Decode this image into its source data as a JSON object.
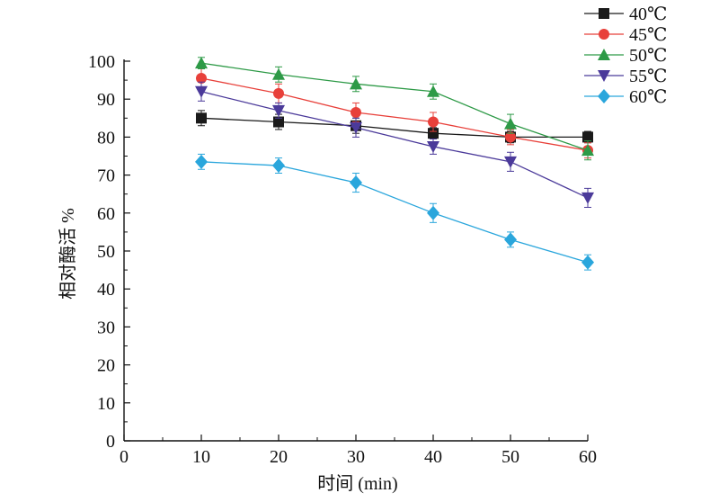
{
  "chart_data": {
    "type": "line",
    "title": "",
    "xlabel": "时间 (min)",
    "ylabel": "相对酶活 %",
    "xlim": [
      0,
      60
    ],
    "ylim": [
      0,
      100
    ],
    "x_ticks": [
      0,
      10,
      20,
      30,
      40,
      50,
      60
    ],
    "y_ticks": [
      0,
      10,
      20,
      30,
      40,
      50,
      60,
      70,
      80,
      90,
      100
    ],
    "x": [
      10,
      20,
      30,
      40,
      50,
      60
    ],
    "legend_position": "top-right",
    "grid": false,
    "series": [
      {
        "name": "40℃",
        "color": "#1a1a1a",
        "marker": "square",
        "values": [
          85,
          84,
          83,
          81,
          80,
          80
        ],
        "errors": [
          2,
          2,
          2,
          1.5,
          1.5,
          1.5
        ]
      },
      {
        "name": "45℃",
        "color": "#e8403a",
        "marker": "circle",
        "values": [
          95.5,
          91.5,
          86.5,
          84,
          80,
          76.5
        ],
        "errors": [
          2.5,
          2.5,
          2.5,
          2.5,
          2,
          2
        ]
      },
      {
        "name": "50℃",
        "color": "#2e9a47",
        "marker": "triangle-up",
        "values": [
          99.5,
          96.5,
          94,
          92,
          83.5,
          76.5
        ],
        "errors": [
          1.5,
          2,
          2,
          2,
          2.5,
          2.5
        ]
      },
      {
        "name": "55℃",
        "color": "#4b3a9a",
        "marker": "triangle-down",
        "values": [
          92,
          87,
          82.5,
          77.5,
          73.5,
          64
        ],
        "errors": [
          2.5,
          2,
          2.5,
          2,
          2.5,
          2.5
        ]
      },
      {
        "name": "60℃",
        "color": "#2aa6dc",
        "marker": "diamond",
        "values": [
          73.5,
          72.5,
          68,
          60,
          53,
          47
        ],
        "errors": [
          2,
          2,
          2.5,
          2.5,
          2,
          2
        ]
      }
    ]
  }
}
